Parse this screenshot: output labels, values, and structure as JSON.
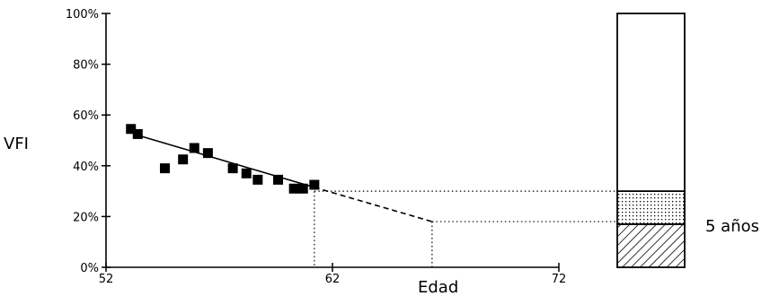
{
  "chart_data": {
    "type": "scatter",
    "ylabel": "VFI",
    "xlabel": "Edad",
    "xlim": [
      52,
      72
    ],
    "ylim": [
      0,
      100
    ],
    "x_ticks": [
      52,
      62,
      72
    ],
    "x_tick_labels": [
      "52",
      "62",
      "72"
    ],
    "y_ticks": [
      0,
      20,
      40,
      60,
      80,
      100
    ],
    "y_tick_labels": [
      "0%",
      "20%",
      "40%",
      "60%",
      "80%",
      "100%"
    ],
    "points": [
      {
        "x": 53.1,
        "y": 54.5
      },
      {
        "x": 53.4,
        "y": 52.5
      },
      {
        "x": 54.6,
        "y": 39
      },
      {
        "x": 55.4,
        "y": 42.5
      },
      {
        "x": 55.9,
        "y": 47
      },
      {
        "x": 56.5,
        "y": 45
      },
      {
        "x": 57.6,
        "y": 39
      },
      {
        "x": 58.2,
        "y": 37
      },
      {
        "x": 58.7,
        "y": 34.5
      },
      {
        "x": 59.6,
        "y": 34.5
      },
      {
        "x": 60.3,
        "y": 31
      },
      {
        "x": 60.7,
        "y": 31
      },
      {
        "x": 61.2,
        "y": 32.5
      }
    ],
    "trend_line": {
      "x": [
        53.6,
        61.2
      ],
      "y": [
        51.5,
        31.5
      ],
      "style": "solid"
    },
    "projection_line": {
      "x": [
        61.2,
        66.4
      ],
      "y": [
        31.5,
        18
      ],
      "style": "dashed"
    },
    "reference_x": [
      61.2,
      66.4
    ],
    "reference_y": [
      30,
      18
    ],
    "stacked_bar": {
      "ylim": [
        0,
        100
      ],
      "segments": [
        {
          "from": 0,
          "to": 17,
          "fill": "hatched"
        },
        {
          "from": 17,
          "to": 30,
          "fill": "dotted"
        },
        {
          "from": 30,
          "to": 100,
          "fill": "empty"
        }
      ]
    },
    "annotation": "5 años"
  }
}
